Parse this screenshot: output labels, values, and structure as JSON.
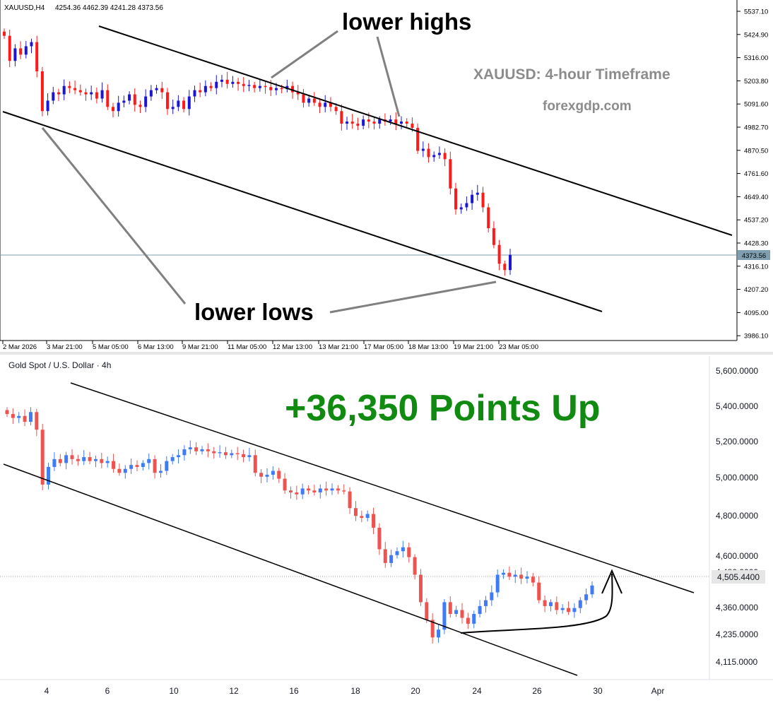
{
  "colors": {
    "up_top": "#1a16d4",
    "down_top": "#ff1a1a",
    "up_bottom": "#3f7bf6",
    "down_bottom": "#ef5350",
    "price_line_top": "#7f9fb0",
    "headline": "#118a11",
    "title_gray": "#8c8c8c"
  },
  "top_chart": {
    "header": {
      "symbol": "XAUUSD,H4",
      "ohlc": "4254.36 4462.39 4241.28 4373.56"
    },
    "title": "XAUUSD: 4-hour Timeframe",
    "watermark": "forexgdp.com",
    "annotations": {
      "highs": "lower highs",
      "lows": "lower lows"
    },
    "price_tag": "4373.56",
    "price_axis": [
      "5537.10",
      "5424.90",
      "5316.00",
      "5203.80",
      "5091.60",
      "4982.70",
      "4870.50",
      "4761.60",
      "4649.40",
      "4537.20",
      "4428.30",
      "4316.10",
      "4207.20",
      "4095.00",
      "3986.10"
    ],
    "time_axis": [
      "2 Mar 2026",
      "3 Mar 21:00",
      "5 Mar 05:00",
      "6 Mar 13:00",
      "9 Mar 21:00",
      "11 Mar 05:00",
      "12 Mar 13:00",
      "13 Mar 21:00",
      "17 Mar 05:00",
      "18 Mar 13:00",
      "19 Mar 21:00",
      "23 Mar 05:00"
    ]
  },
  "bottom_chart": {
    "header": "Gold Spot / U.S. Dollar · 4h",
    "headline": "+36,350 Points Up",
    "price_tag": "4,505.4400",
    "price_axis": [
      "5,600.0000",
      "5,400.0000",
      "5,200.0000",
      "5,000.0000",
      "4,800.0000",
      "4,600.0000",
      "4,480.0000",
      "4,360.0000",
      "4,235.0000",
      "4,115.0000"
    ],
    "time_axis": [
      "4",
      "6",
      "10",
      "12",
      "16",
      "18",
      "20",
      "24",
      "26",
      "30",
      "Apr"
    ]
  },
  "chart_data": [
    {
      "type": "candlestick",
      "title": "XAUUSD: 4-hour Timeframe",
      "timeframe": "H4",
      "price_range": [
        3986.1,
        5537.1
      ],
      "last_ohlc": {
        "open": 4254.36,
        "high": 4462.39,
        "low": 4241.28,
        "close": 4373.56
      },
      "trend": "descending channel",
      "closes_approx": [
        5420,
        5300,
        5360,
        5330,
        5370,
        5390,
        5250,
        5060,
        5110,
        5150,
        5140,
        5180,
        5170,
        5160,
        5150,
        5140,
        5150,
        5120,
        5160,
        5080,
        5060,
        5100,
        5110,
        5140,
        5090,
        5080,
        5130,
        5160,
        5170,
        5150,
        5070,
        5080,
        5110,
        5070,
        5130,
        5160,
        5150,
        5180,
        5170,
        5200,
        5210,
        5190,
        5200,
        5190,
        5180,
        5185,
        5170,
        5180,
        5175,
        5160,
        5170,
        5165,
        5180,
        5150,
        5140,
        5100,
        5120,
        5100,
        5080,
        5100,
        5080,
        5060,
        5000,
        5010,
        5000,
        4990,
        5020,
        5010,
        5000,
        5020,
        5010,
        5020,
        5000,
        5010,
        5000,
        4980,
        4870,
        4880,
        4840,
        4850,
        4860,
        4830,
        4690,
        4590,
        4600,
        4620,
        4660,
        4670,
        4600,
        4500,
        4420,
        4330,
        4300,
        4373
      ]
    },
    {
      "type": "candlestick",
      "title": "Gold Spot / U.S. Dollar · 4h",
      "timeframe": "4h",
      "price_range": [
        4050,
        5700
      ],
      "last_price": 4505.44,
      "trend": "descending channel",
      "closes_approx": [
        5380,
        5360,
        5370,
        5340,
        5390,
        5300,
        5020,
        5110,
        5150,
        5130,
        5170,
        5150,
        5140,
        5160,
        5140,
        5150,
        5130,
        5140,
        5100,
        5080,
        5100,
        5120,
        5110,
        5130,
        5150,
        5080,
        5090,
        5140,
        5160,
        5170,
        5200,
        5210,
        5190,
        5200,
        5190,
        5180,
        5185,
        5170,
        5180,
        5175,
        5160,
        5170,
        5080,
        5060,
        5070,
        5090,
        5050,
        4990,
        4980,
        4970,
        5000,
        4990,
        4980,
        5000,
        4990,
        5000,
        4990,
        4985,
        4900,
        4860,
        4850,
        4870,
        4800,
        4690,
        4620,
        4660,
        4680,
        4700,
        4650,
        4560,
        4420,
        4330,
        4240,
        4280,
        4420,
        4360,
        4380,
        4340,
        4310,
        4360,
        4400,
        4430,
        4470,
        4560,
        4570,
        4550,
        4560,
        4540,
        4550,
        4520,
        4430,
        4400,
        4420,
        4380,
        4390,
        4370,
        4390,
        4430,
        4460,
        4505
      ]
    }
  ]
}
